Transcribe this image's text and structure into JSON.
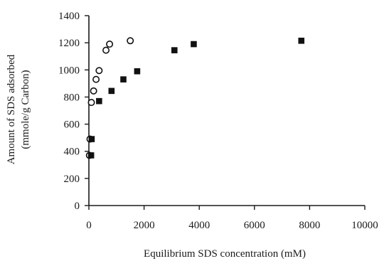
{
  "chart_data": {
    "type": "scatter",
    "title": "",
    "xlabel": "Equilibrium SDS  concentration (mM)",
    "ylabel": [
      "Amount of SDS adsorbed",
      "(mmole/g Carbon)"
    ],
    "xlim": [
      0,
      10000
    ],
    "ylim": [
      0,
      1400
    ],
    "xticks": [
      0,
      2000,
      4000,
      6000,
      8000,
      10000
    ],
    "yticks": [
      0,
      200,
      400,
      600,
      800,
      1000,
      1200,
      1400
    ],
    "xtick_labels": [
      "0",
      "2000",
      "4000",
      "6000",
      "8000",
      "10000"
    ],
    "ytick_labels": [
      "0",
      "200",
      "400",
      "600",
      "800",
      "1000",
      "1200",
      "1400"
    ],
    "grid": false,
    "legend": "none",
    "colors": {
      "axis": "#1a1a1a",
      "marker": "#111111",
      "background": "#ffffff"
    },
    "series": [
      {
        "marker": "open-circle",
        "points": [
          {
            "x": 20,
            "y": 370
          },
          {
            "x": 40,
            "y": 490
          },
          {
            "x": 90,
            "y": 760
          },
          {
            "x": 170,
            "y": 845
          },
          {
            "x": 260,
            "y": 930
          },
          {
            "x": 370,
            "y": 995
          },
          {
            "x": 620,
            "y": 1145
          },
          {
            "x": 750,
            "y": 1190
          },
          {
            "x": 1500,
            "y": 1215
          }
        ]
      },
      {
        "marker": "filled-square",
        "points": [
          {
            "x": 80,
            "y": 370
          },
          {
            "x": 100,
            "y": 490
          },
          {
            "x": 370,
            "y": 770
          },
          {
            "x": 820,
            "y": 845
          },
          {
            "x": 1250,
            "y": 930
          },
          {
            "x": 1750,
            "y": 990
          },
          {
            "x": 3100,
            "y": 1145
          },
          {
            "x": 3800,
            "y": 1190
          },
          {
            "x": 7700,
            "y": 1215
          }
        ]
      }
    ]
  }
}
